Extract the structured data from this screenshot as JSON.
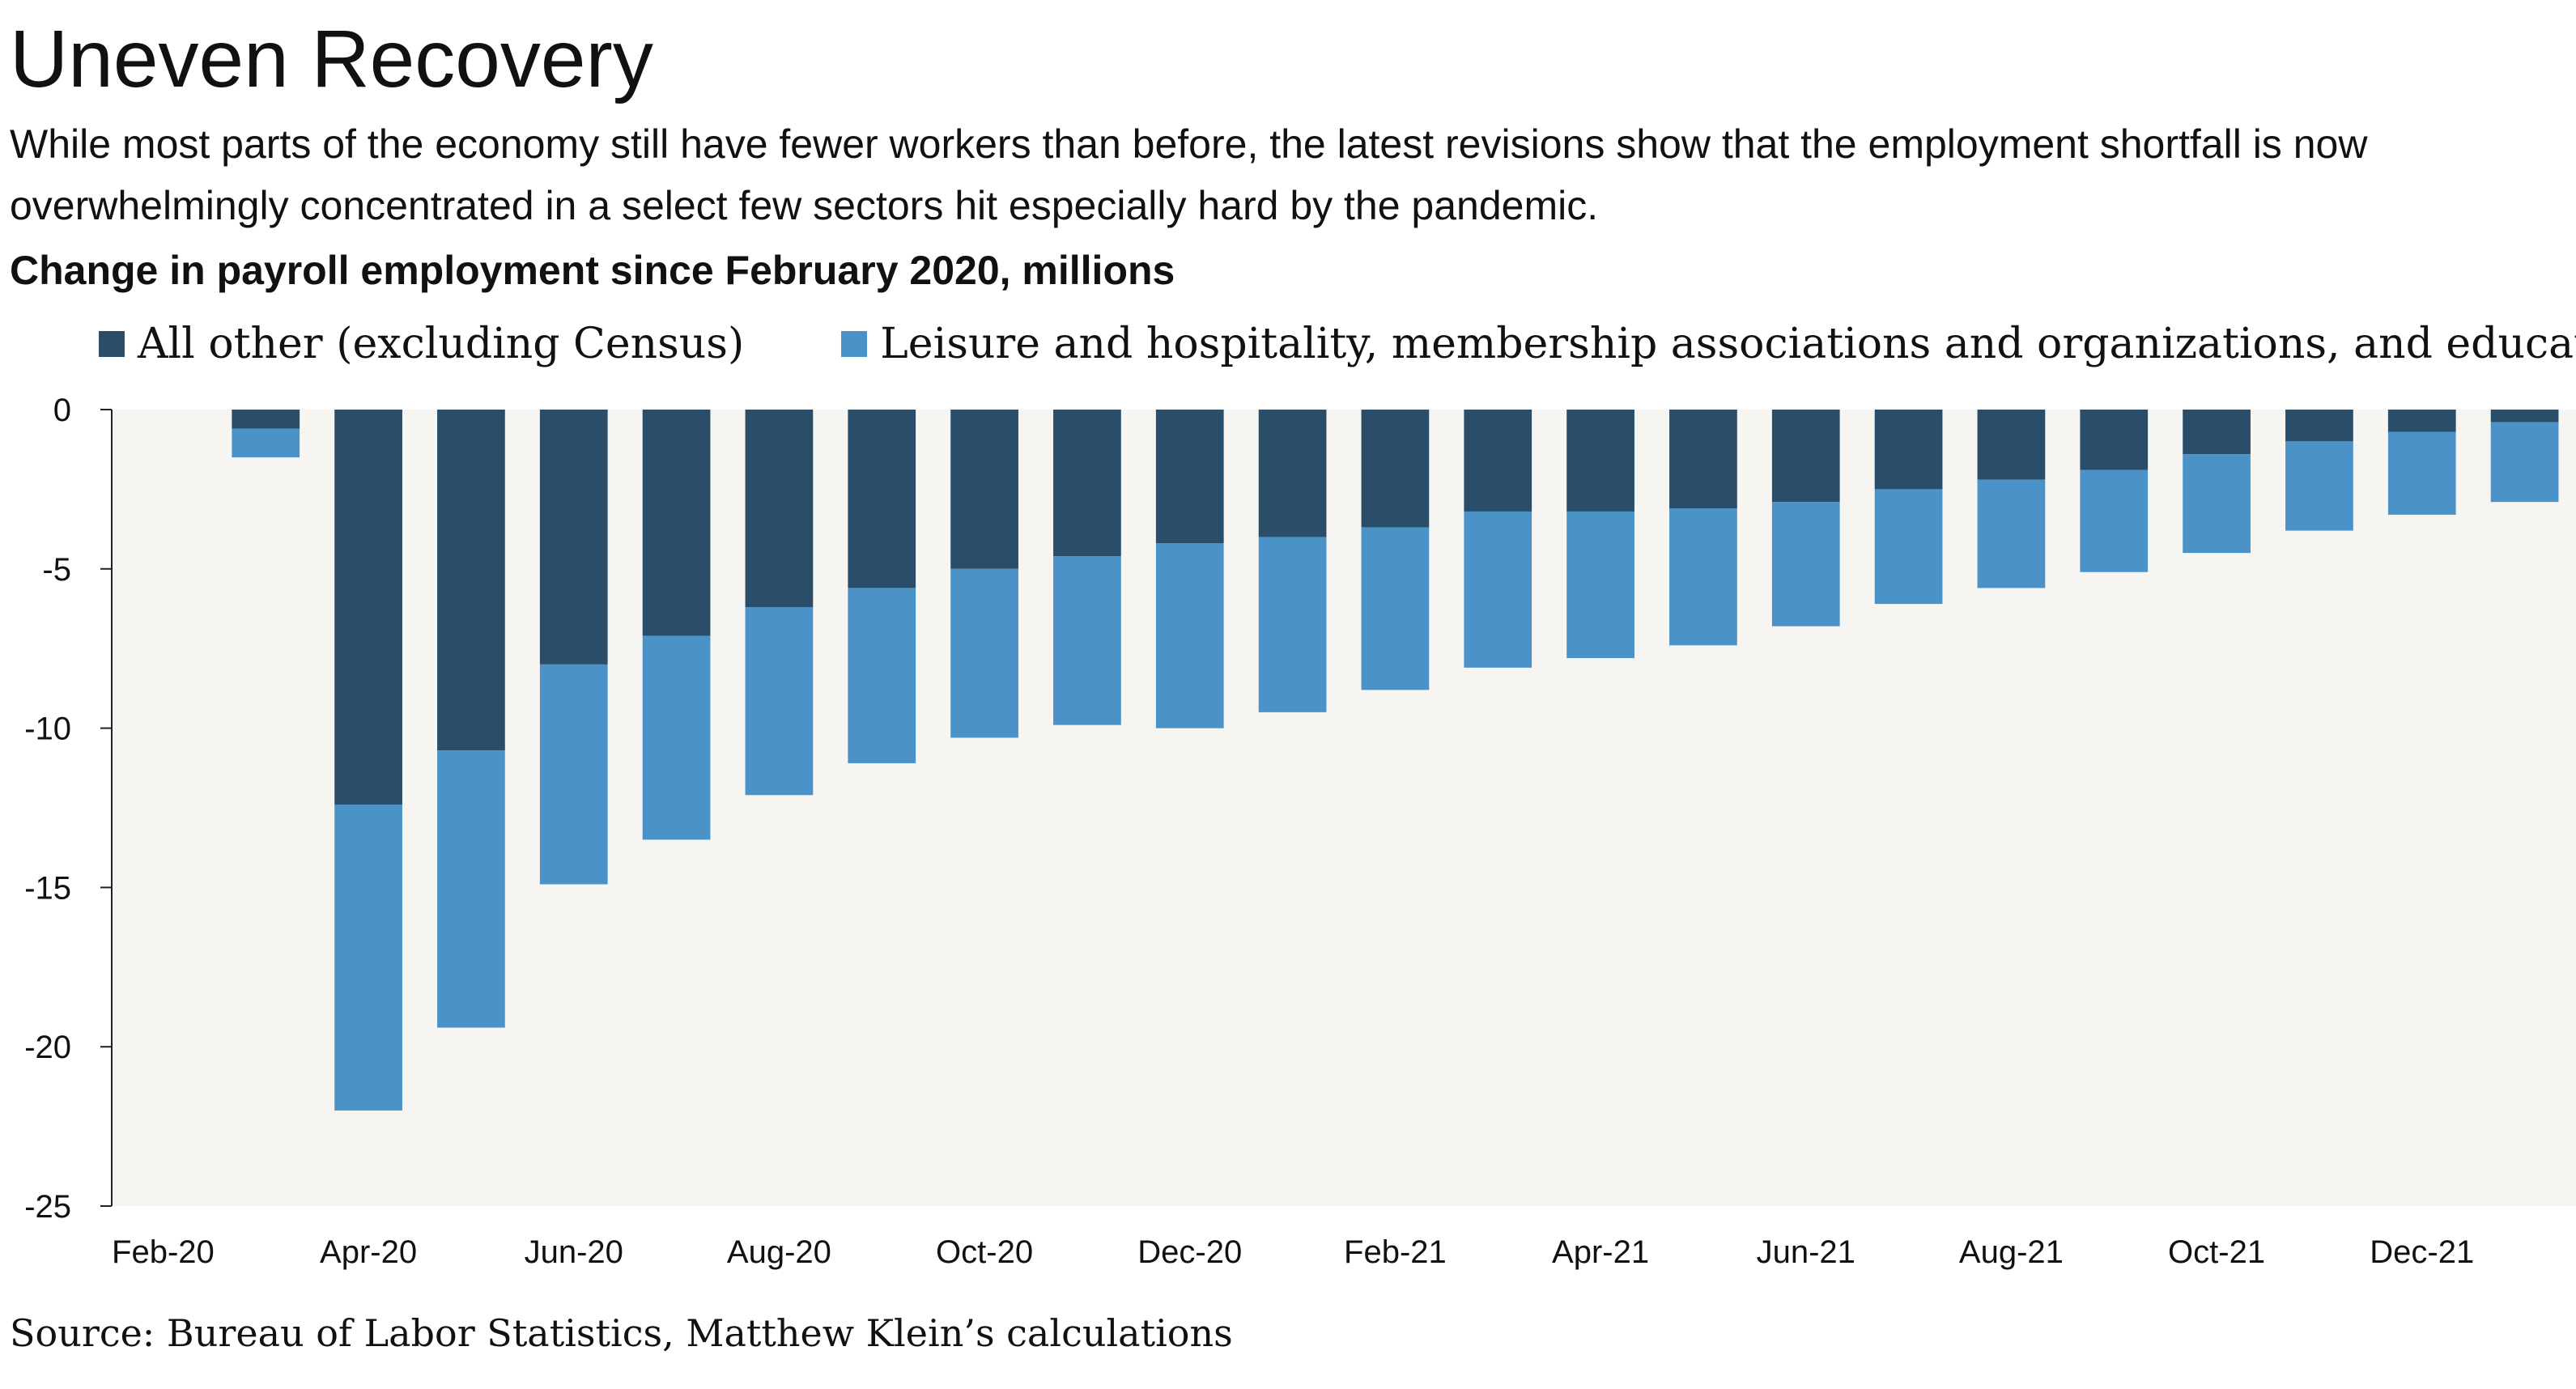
{
  "chart_data": {
    "type": "bar",
    "stacked": true,
    "title": "Uneven Recovery",
    "subtitle": "While most parts of the economy still have fewer workers than before, the latest revisions show that the employment shortfall is now overwhelmingly concentrated in a select few sectors hit especially hard by the pandemic.",
    "ylabel": "Change in payroll employment since February 2020, millions",
    "xlabel": "",
    "ylim": [
      -25,
      0
    ],
    "yticks": [
      0,
      -5,
      -10,
      -15,
      -20,
      -25
    ],
    "ytick_labels": [
      "0",
      "-5",
      "-10",
      "-15",
      "-20",
      "-25"
    ],
    "categories": [
      "Feb-20",
      "Mar-20",
      "Apr-20",
      "May-20",
      "Jun-20",
      "Jul-20",
      "Aug-20",
      "Sep-20",
      "Oct-20",
      "Nov-20",
      "Dec-20",
      "Jan-21",
      "Feb-21",
      "Mar-21",
      "Apr-21",
      "May-21",
      "Jun-21",
      "Jul-21",
      "Aug-21",
      "Sep-21",
      "Oct-21",
      "Nov-21",
      "Dec-21",
      "Jan-22"
    ],
    "xtick_labels": [
      {
        "index": 0,
        "label": "Feb-20"
      },
      {
        "index": 2,
        "label": "Apr-20"
      },
      {
        "index": 4,
        "label": "Jun-20"
      },
      {
        "index": 6,
        "label": "Aug-20"
      },
      {
        "index": 8,
        "label": "Oct-20"
      },
      {
        "index": 10,
        "label": "Dec-20"
      },
      {
        "index": 12,
        "label": "Feb-21"
      },
      {
        "index": 14,
        "label": "Apr-21"
      },
      {
        "index": 16,
        "label": "Jun-21"
      },
      {
        "index": 18,
        "label": "Aug-21"
      },
      {
        "index": 20,
        "label": "Oct-21"
      },
      {
        "index": 22,
        "label": "Dec-21"
      }
    ],
    "series": [
      {
        "name": "All other (excluding Census)",
        "color": "#2a4d69",
        "values": [
          0,
          -0.6,
          -12.4,
          -10.7,
          -8.0,
          -7.1,
          -6.2,
          -5.6,
          -5.0,
          -4.6,
          -4.2,
          -4.0,
          -3.7,
          -3.2,
          -3.2,
          -3.1,
          -2.9,
          -2.5,
          -2.2,
          -1.9,
          -1.4,
          -1.0,
          -0.7,
          -0.4
        ]
      },
      {
        "name": "Leisure and hospitality, membership associations and organizations, and education",
        "color": "#4a92c7",
        "values": [
          0,
          -0.9,
          -9.6,
          -8.7,
          -6.9,
          -6.4,
          -5.9,
          -5.5,
          -5.3,
          -5.3,
          -5.8,
          -5.5,
          -5.1,
          -4.9,
          -4.6,
          -4.3,
          -3.9,
          -3.6,
          -3.4,
          -3.2,
          -3.1,
          -2.8,
          -2.6,
          -2.5
        ]
      }
    ],
    "grid": false,
    "legend_position": "top-left",
    "plot_background": "#f6f5f2",
    "source": "Source: Bureau of Labor Statistics, Matthew Klein’s calculations"
  }
}
